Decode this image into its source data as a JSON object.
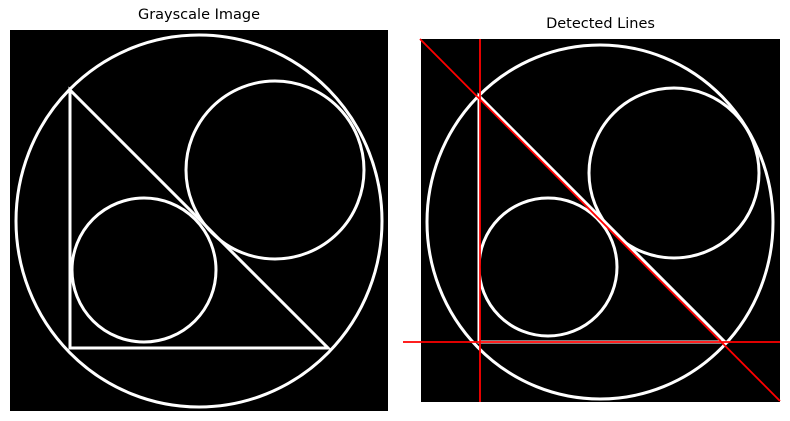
{
  "panels": {
    "left": {
      "title": "Grayscale Image",
      "background": "#000000",
      "stroke": "#ffffff"
    },
    "right": {
      "title": "Detected Lines",
      "background": "#000000",
      "stroke": "#ffffff",
      "line_color": "#ff0000"
    }
  }
}
